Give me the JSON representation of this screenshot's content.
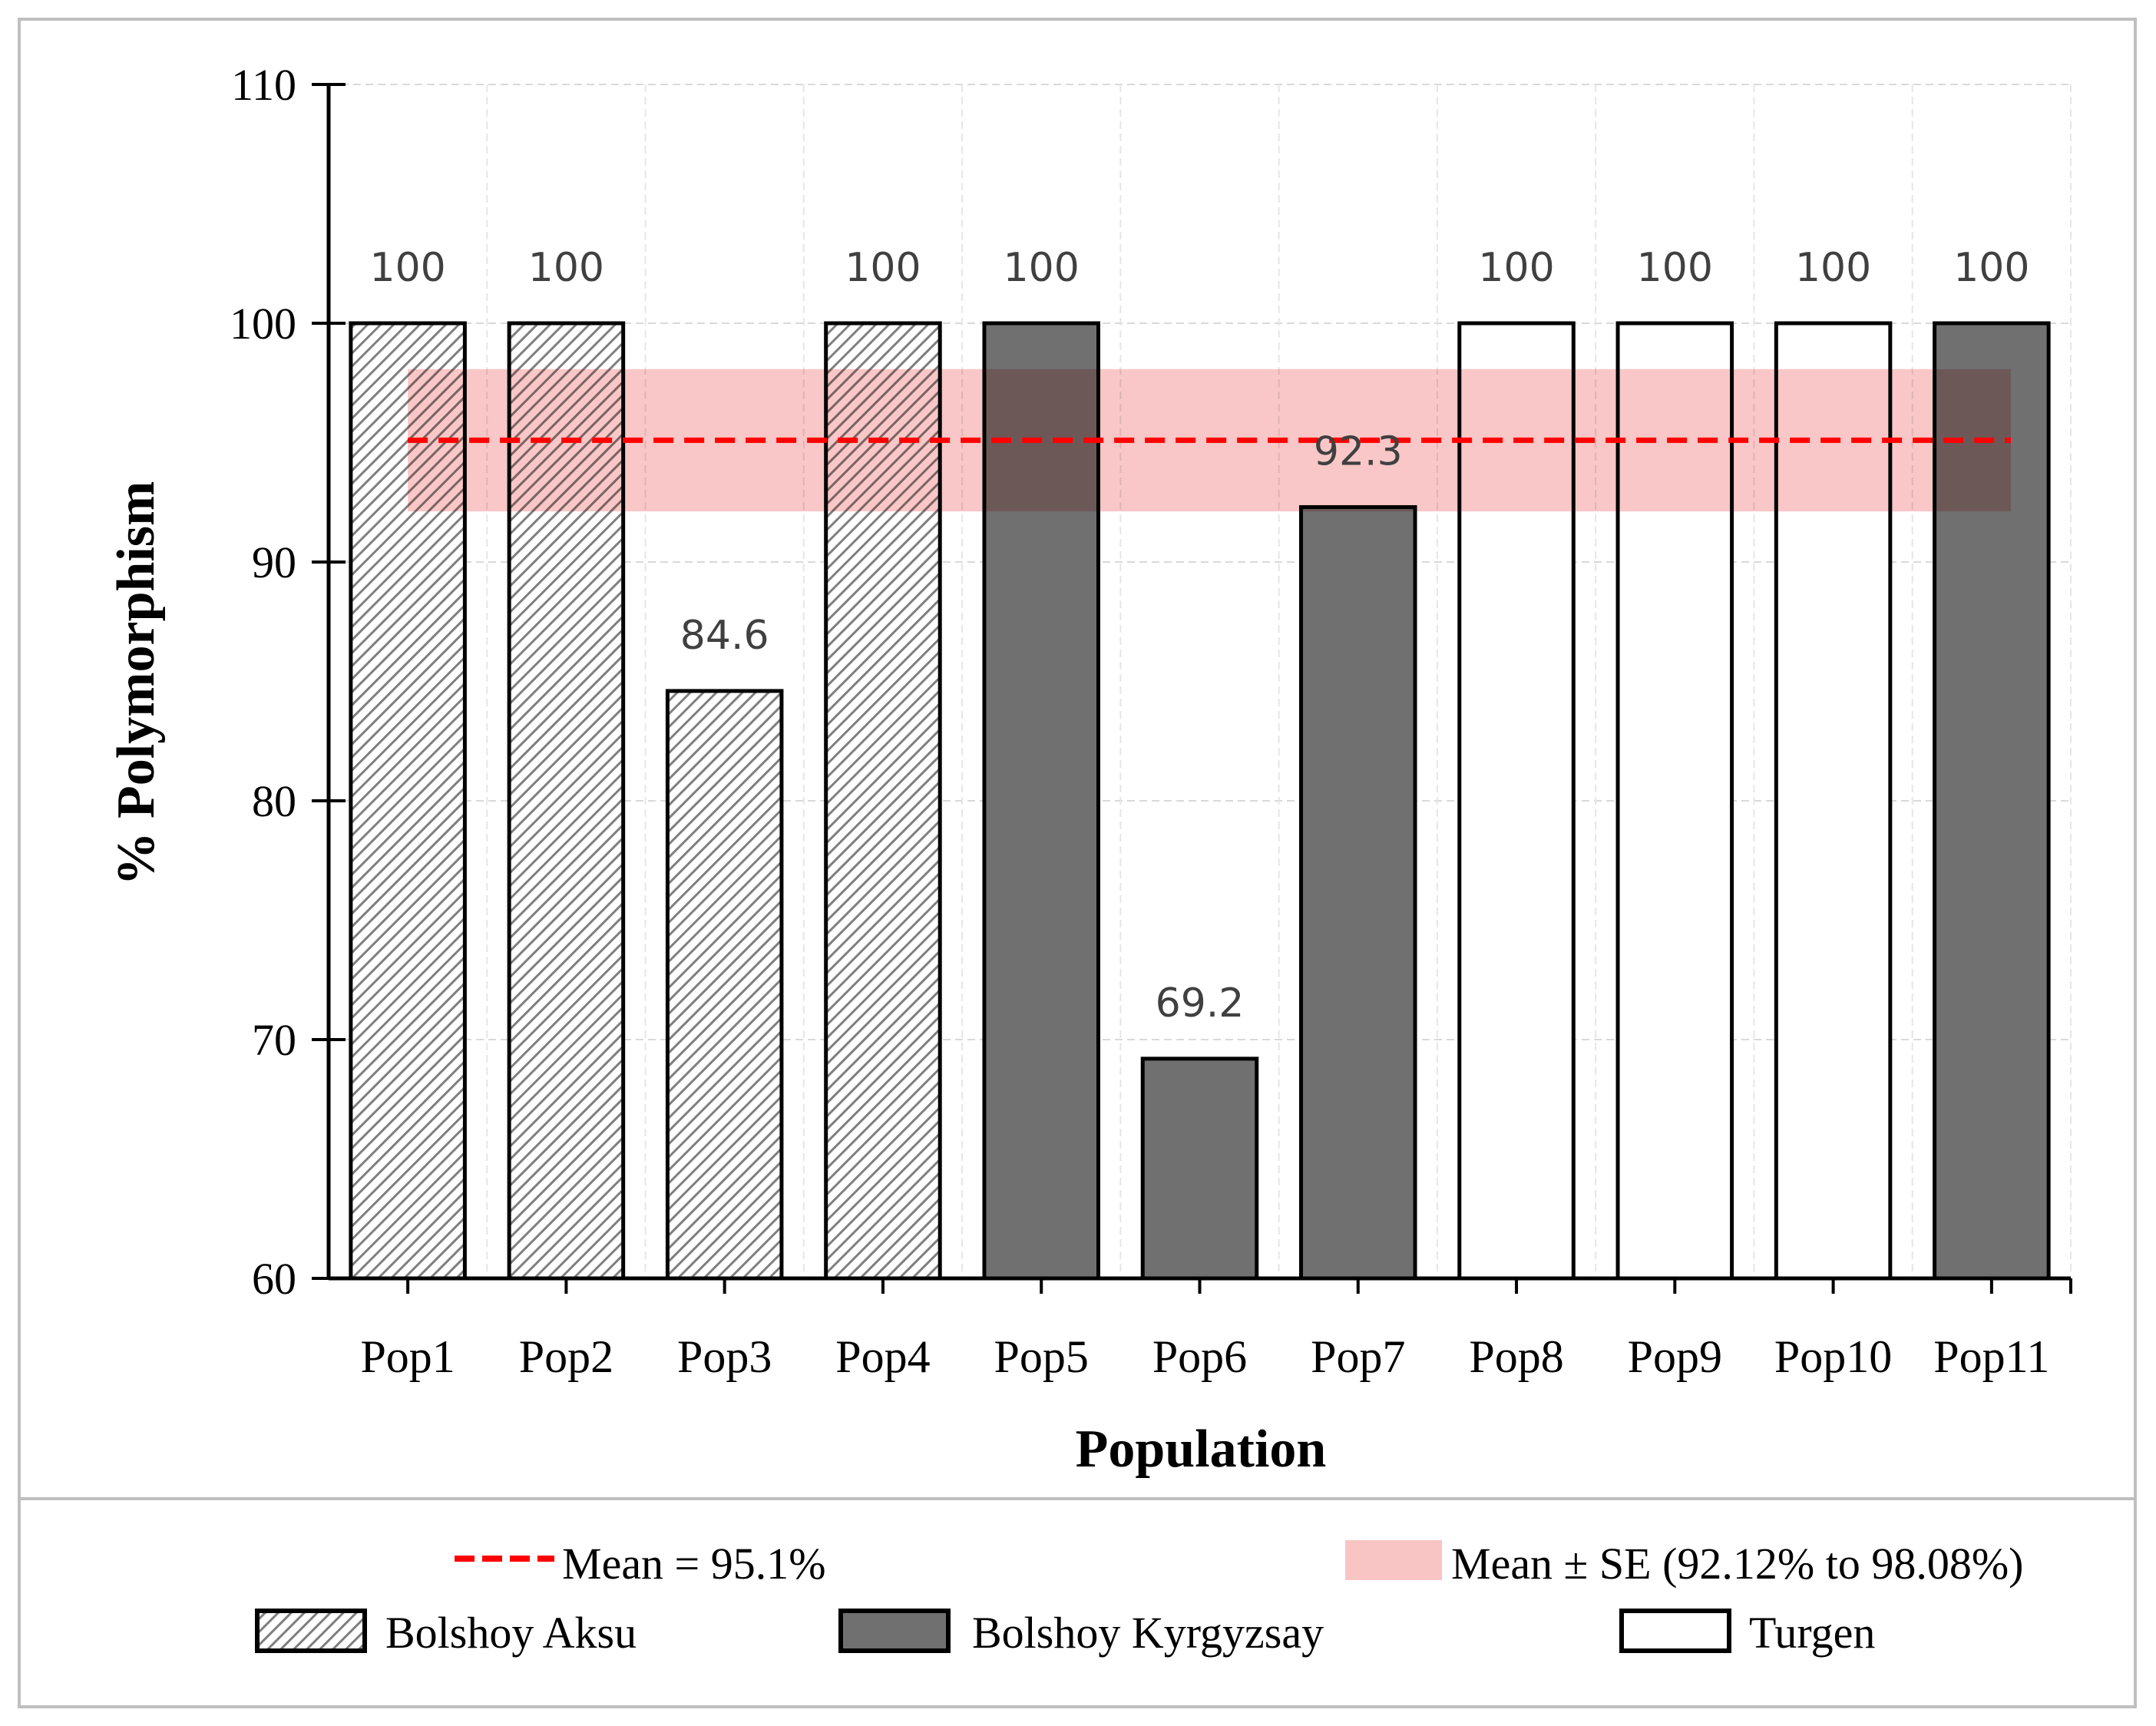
{
  "chart_data": {
    "type": "bar",
    "title": "",
    "xlabel": "Population",
    "ylabel": "% Polymorphism",
    "ylim": [
      60,
      110
    ],
    "yticks": [
      60,
      70,
      80,
      90,
      100,
      110
    ],
    "grid": true,
    "categories": [
      "Pop1",
      "Pop2",
      "Pop3",
      "Pop4",
      "Pop5",
      "Pop6",
      "Pop7",
      "Pop8",
      "Pop9",
      "Pop10",
      "Pop11"
    ],
    "values": [
      100,
      100,
      84.6,
      100,
      100,
      69.2,
      92.3,
      100,
      100,
      100,
      100
    ],
    "data_labels": [
      "100",
      "100",
      "84.6",
      "100",
      "100",
      "69.2",
      "92.3",
      "100",
      "100",
      "100",
      "100"
    ],
    "groups": [
      "Bolshoy Aksu",
      "Bolshoy Aksu",
      "Bolshoy Aksu",
      "Bolshoy Aksu",
      "Bolshoy Kyrgyzsay",
      "Bolshoy Kyrgyzsay",
      "Bolshoy Kyrgyzsay",
      "Turgen",
      "Turgen",
      "Turgen",
      "Bolshoy Kyrgyzsay"
    ],
    "series_styles": [
      {
        "name": "Bolshoy Aksu",
        "fill": "hatched",
        "color": "#7f7f7f"
      },
      {
        "name": "Bolshoy Kyrgyzsay",
        "fill": "solid",
        "color": "#707070"
      },
      {
        "name": "Turgen",
        "fill": "solid",
        "color": "#ffffff"
      }
    ],
    "mean": {
      "value": 95.1,
      "label": "Mean = 95.1%",
      "color": "#ff0000"
    },
    "se_band": {
      "low": 92.12,
      "high": 98.08,
      "label": "Mean ± SE (92.12% to 98.08%)",
      "color": "#f9c4c4"
    },
    "legend_position": "bottom"
  }
}
